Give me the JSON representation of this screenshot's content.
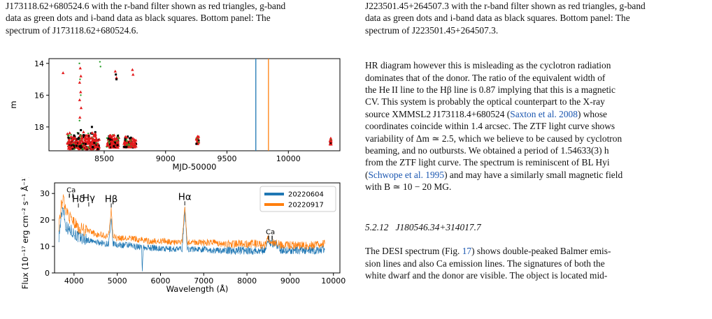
{
  "left": {
    "caption_line1": "J173118.62+680524.6 with the r-band filter shown as red triangles, g-band",
    "caption_line2": "data as green dots and i-band data as black squares. Bottom panel: The",
    "caption_line3": "spectrum of J173118.62+680524.6."
  },
  "right": {
    "caption_line1": "J223501.45+264507.3 with the r-band filter shown as red triangles, g-band",
    "caption_line2": "data as green dots and i-band data as black squares. Bottom panel: The",
    "caption_line3": "spectrum of J223501.45+264507.3.",
    "para": [
      "HR diagram however this is misleading as the cyclotron radiation",
      "dominates that of the donor. The ratio of the equivalent width of",
      "the He II line to the Hβ line is 0.87 implying that this is a magnetic",
      "CV. This system is probably the optical counterpart to the X-ray",
      "source XMMSL2 J173118.4+680524 (",
      "Saxton et al. 2008",
      ") whose",
      "coordinates coincide within 1.4 arcsec. The ZTF light curve shows",
      "variability of Δm ≃ 2.5, which we believe to be caused by cyclotron",
      "beaming, and no outbursts. We obtained a period of 1.54633(3) h",
      "from the ZTF light curve. The spectrum is reminiscent of BL Hyi",
      "(",
      "Schwope et al. 1995",
      ") and may have a similarly small magnetic field",
      "with B ≃ 10 − 20 MG."
    ],
    "section_number": "5.2.12",
    "section_title": "J180546.34+314017.7",
    "sec_para": [
      "The DESI spectrum (Fig. ",
      "17",
      ") shows double-peaked Balmer emis-",
      "sion lines and also Ca  emission lines. The signatures of both the",
      "white dwarf and the donor are visible. The object is located mid-"
    ]
  },
  "chart_data": [
    {
      "type": "scatter",
      "xlabel": "MJD-50000",
      "ylabel": "m",
      "xlim": [
        8050,
        10420
      ],
      "ylim": [
        19.5,
        13.7
      ],
      "xticks": [
        "8500",
        "9000",
        "9500",
        "10000"
      ],
      "yticks": [
        "14",
        "16",
        "18"
      ],
      "grid": false,
      "vlines": [
        {
          "x": 9735,
          "color": "#1f77b4"
        },
        {
          "x": 9838,
          "color": "#ff7f0e"
        }
      ],
      "colors": {
        "r": "#e31a1c",
        "g": "#2ca02c",
        "i": "#000000"
      },
      "clusters": [
        {
          "x": [
            8200,
            8460
          ],
          "y": [
            18.3,
            19.4
          ]
        },
        {
          "x": [
            8520,
            8620
          ],
          "y": [
            18.4,
            19.3
          ]
        },
        {
          "x": [
            8660,
            8760
          ],
          "y": [
            18.6,
            19.3
          ]
        },
        {
          "x": [
            9250,
            9270
          ],
          "y": [
            18.5,
            19.1
          ]
        },
        {
          "x": [
            10340,
            10350
          ],
          "y": [
            18.7,
            19.1
          ]
        }
      ],
      "sparse_points": [
        {
          "x": 8165,
          "y": 14.6,
          "band": "r"
        },
        {
          "x": 8305,
          "y": 14.3,
          "band": "r"
        },
        {
          "x": 8310,
          "y": 14.8,
          "band": "r"
        },
        {
          "x": 8300,
          "y": 15.2,
          "band": "r"
        },
        {
          "x": 8308,
          "y": 15.8,
          "band": "r"
        },
        {
          "x": 8300,
          "y": 16.3,
          "band": "r"
        },
        {
          "x": 8312,
          "y": 16.8,
          "band": "r"
        },
        {
          "x": 8302,
          "y": 17.4,
          "band": "r"
        },
        {
          "x": 8298,
          "y": 14.0,
          "band": "g"
        },
        {
          "x": 8303,
          "y": 15.0,
          "band": "g"
        },
        {
          "x": 8309,
          "y": 16.0,
          "band": "g"
        },
        {
          "x": 8299,
          "y": 17.6,
          "band": "g"
        },
        {
          "x": 8465,
          "y": 13.9,
          "band": "g"
        },
        {
          "x": 8470,
          "y": 14.2,
          "band": "g"
        },
        {
          "x": 8590,
          "y": 14.5,
          "band": "r"
        },
        {
          "x": 8600,
          "y": 14.9,
          "band": "r"
        },
        {
          "x": 8595,
          "y": 14.7,
          "band": "i"
        },
        {
          "x": 8600,
          "y": 15.0,
          "band": "i"
        },
        {
          "x": 8730,
          "y": 14.4,
          "band": "r"
        },
        {
          "x": 8735,
          "y": 14.7,
          "band": "r"
        },
        {
          "x": 8310,
          "y": 18.2,
          "band": "i"
        },
        {
          "x": 8400,
          "y": 18.0,
          "band": "i"
        }
      ]
    },
    {
      "type": "line",
      "xlabel": "Wavelength (Å)",
      "ylabel": "Flux (10⁻¹⁷ erg cm⁻² s⁻¹ Å⁻¹)",
      "xlim": [
        3550,
        10150
      ],
      "ylim": [
        0,
        34
      ],
      "xticks": [
        "4000",
        "5000",
        "6000",
        "7000",
        "8000",
        "9000",
        "10000"
      ],
      "yticks": [
        "0",
        "10",
        "20",
        "30"
      ],
      "legend_position": "top-right",
      "series": [
        {
          "name": "20220604",
          "color": "#1f77b4",
          "x": [
            3650,
            3700,
            3750,
            3800,
            3850,
            3900,
            3950,
            4000,
            4100,
            4200,
            4300,
            4400,
            4500,
            4600,
            4700,
            4800,
            4861,
            4900,
            5000,
            5200,
            5400,
            5500,
            5560,
            5580,
            5600,
            5700,
            5900,
            6100,
            6300,
            6500,
            6563,
            6620,
            6800,
            7000,
            7200,
            7400,
            7600,
            7800,
            8000,
            8200,
            8400,
            8498,
            8542,
            8662,
            8800,
            9000,
            9200,
            9400,
            9600,
            9800
          ],
          "y": [
            14,
            20,
            26,
            18,
            17,
            16,
            16,
            15,
            13.5,
            13,
            12.5,
            12,
            11.5,
            11.5,
            11,
            11,
            20,
            11,
            10.5,
            10.5,
            10,
            10,
            9.5,
            1.5,
            9.5,
            9.5,
            9.5,
            9,
            9,
            9,
            24,
            9,
            9,
            9,
            8.5,
            8.5,
            8.5,
            8.5,
            8.5,
            8.5,
            8.5,
            12,
            11.5,
            11,
            8.5,
            8.5,
            8.5,
            8.5,
            8.5,
            9
          ]
        },
        {
          "name": "20220917",
          "color": "#ff7f0e",
          "x": [
            3650,
            3700,
            3750,
            3800,
            3850,
            3900,
            3950,
            4000,
            4100,
            4200,
            4300,
            4400,
            4500,
            4600,
            4700,
            4800,
            4861,
            4900,
            5000,
            5200,
            5400,
            5500,
            5600,
            5700,
            5900,
            6100,
            6300,
            6500,
            6563,
            6620,
            6800,
            7000,
            7200,
            7400,
            7600,
            7800,
            8000,
            8200,
            8400,
            8498,
            8542,
            8662,
            8800,
            9000,
            9200,
            9400,
            9600,
            9800
          ],
          "y": [
            18,
            25,
            28,
            24,
            23,
            21,
            20,
            19,
            17,
            16.5,
            16,
            15.5,
            14.5,
            14.5,
            14,
            14,
            24,
            14,
            13,
            13,
            13,
            12.5,
            12.5,
            12,
            12,
            12,
            11.5,
            11.5,
            26,
            11.5,
            11.5,
            11.5,
            11.5,
            11,
            11,
            11,
            11,
            11,
            10.5,
            13,
            12,
            11.5,
            10.5,
            10.5,
            10.5,
            10.5,
            10.5,
            11
          ]
        }
      ],
      "line_labels": [
        {
          "text": "Ca",
          "x": 3934,
          "y": 30.5,
          "kind": "ca"
        },
        {
          "text": "Hδ",
          "x": 4102,
          "y": 26.8,
          "kind": "balmer"
        },
        {
          "text": "Hγ",
          "x": 4341,
          "y": 27.2,
          "kind": "balmer"
        },
        {
          "text": "Hβ",
          "x": 4861,
          "y": 26.8,
          "kind": "balmer"
        },
        {
          "text": "Hα",
          "x": 6563,
          "y": 27.6,
          "kind": "balmer"
        },
        {
          "text": "Ca",
          "x": 8542,
          "y": 14.6,
          "kind": "ca"
        }
      ]
    }
  ]
}
